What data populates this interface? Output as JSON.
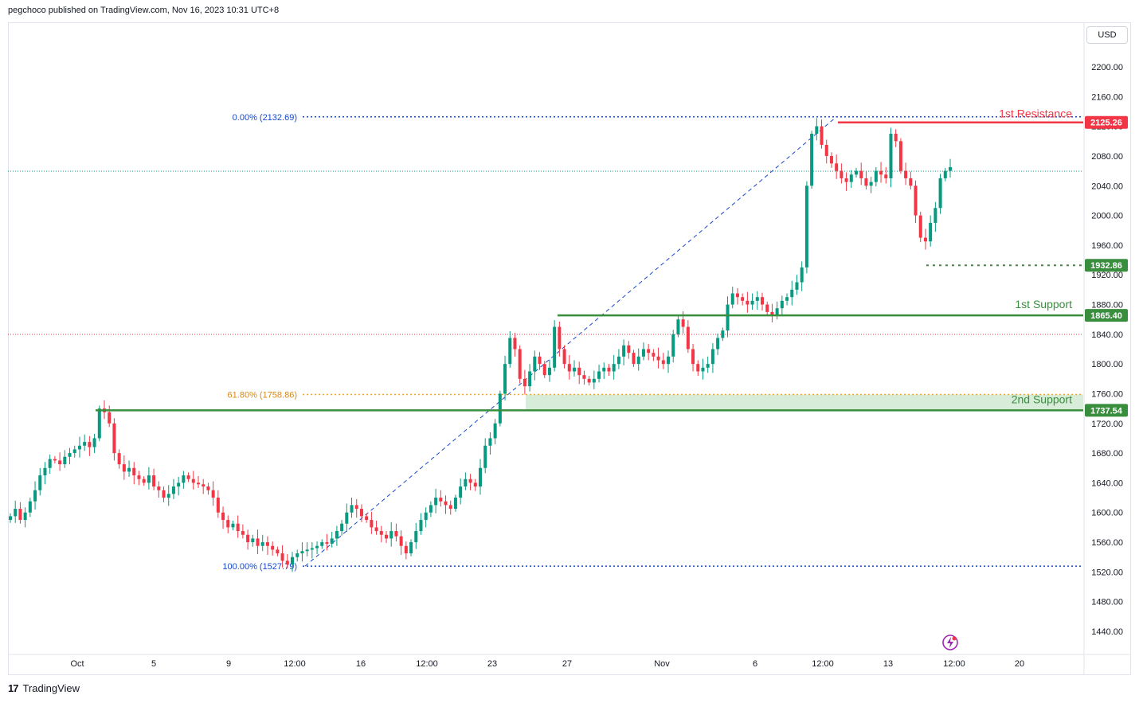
{
  "header": {
    "text": "pegchoco published on TradingView.com, Nov 16, 2023 10:31 UTC+8"
  },
  "footer": {
    "logo": "17",
    "brand": "TradingView"
  },
  "currency": "USD",
  "colors": {
    "up": "#089981",
    "down": "#f23645",
    "resistance": "#f23645",
    "support": "#388e3c",
    "fib_blue": "#1e53e5",
    "fib_orange": "#f5a623",
    "zone": "#c8e6c9"
  },
  "chart_data": {
    "type": "candlestick",
    "price_ticks": [
      2200,
      2160,
      2120,
      2080,
      2040,
      2000,
      1960,
      1920,
      1880,
      1840,
      1800,
      1760,
      1720,
      1680,
      1640,
      1600,
      1560,
      1520,
      1480,
      1440
    ],
    "price_tick_labels": [
      "2200.00",
      "2160.00",
      "2120.00",
      "2080.00",
      "2040.00",
      "2000.00",
      "1960.00",
      "1920.00",
      "1880.00",
      "1840.00",
      "1800.00",
      "1760.00",
      "1720.00",
      "1680.00",
      "1640.00",
      "1600.00",
      "1560.00",
      "1520.00",
      "1480.00",
      "1440.00"
    ],
    "ylim": [
      1410,
      2230
    ],
    "time_labels": [
      "Oct",
      "5",
      "9",
      "12:00",
      "16",
      "12:00",
      "23",
      "27",
      "Nov",
      "6",
      "12:00",
      "13",
      "12:00",
      "20"
    ],
    "levels": [
      {
        "name": "1st Resistance",
        "price": 2125.26,
        "label": "2125.26",
        "color": "#f23645"
      },
      {
        "name": "1st Support",
        "price": 1865.4,
        "label": "1865.40",
        "color": "#388e3c"
      },
      {
        "name": "2nd Support",
        "price": 1737.54,
        "label": "1737.54",
        "color": "#388e3c"
      },
      {
        "name": "",
        "price": 1932.86,
        "label": "1932.86",
        "color": "#388e3c"
      }
    ],
    "fib": [
      {
        "label": "0.00% (2132.69)",
        "price": 2132.69
      },
      {
        "label": "61.80% (1758.86)",
        "price": 1758.86
      },
      {
        "label": "100.00% (1527.79)",
        "price": 1527.79
      }
    ],
    "closes": [
      1595,
      1605,
      1590,
      1600,
      1615,
      1630,
      1650,
      1660,
      1672,
      1670,
      1665,
      1675,
      1680,
      1685,
      1690,
      1695,
      1688,
      1700,
      1740,
      1735,
      1720,
      1680,
      1665,
      1655,
      1660,
      1650,
      1645,
      1640,
      1650,
      1635,
      1630,
      1620,
      1625,
      1635,
      1640,
      1650,
      1645,
      1640,
      1638,
      1635,
      1630,
      1620,
      1600,
      1590,
      1580,
      1585,
      1575,
      1570,
      1560,
      1565,
      1555,
      1560,
      1555,
      1550,
      1545,
      1535,
      1530,
      1540,
      1545,
      1548,
      1550,
      1552,
      1555,
      1560,
      1558,
      1565,
      1575,
      1585,
      1600,
      1610,
      1605,
      1595,
      1590,
      1580,
      1575,
      1570,
      1565,
      1575,
      1568,
      1555,
      1545,
      1560,
      1575,
      1590,
      1600,
      1610,
      1620,
      1615,
      1610,
      1605,
      1620,
      1635,
      1645,
      1640,
      1635,
      1660,
      1690,
      1700,
      1720,
      1760,
      1800,
      1835,
      1820,
      1780,
      1770,
      1790,
      1810,
      1800,
      1785,
      1795,
      1850,
      1820,
      1800,
      1790,
      1795,
      1785,
      1780,
      1775,
      1780,
      1790,
      1795,
      1790,
      1800,
      1810,
      1825,
      1815,
      1800,
      1810,
      1820,
      1815,
      1810,
      1805,
      1800,
      1810,
      1840,
      1860,
      1850,
      1820,
      1800,
      1790,
      1795,
      1800,
      1820,
      1835,
      1845,
      1880,
      1895,
      1890,
      1885,
      1880,
      1885,
      1890,
      1880,
      1870,
      1865,
      1875,
      1885,
      1890,
      1900,
      1910,
      1930,
      2040,
      2110,
      2120,
      2095,
      2080,
      2070,
      2060,
      2050,
      2045,
      2055,
      2060,
      2050,
      2040,
      2045,
      2060,
      2055,
      2050,
      2110,
      2100,
      2060,
      2050,
      2040,
      2000,
      1970,
      1965,
      1990,
      2010,
      2050,
      2060,
      2065
    ]
  }
}
